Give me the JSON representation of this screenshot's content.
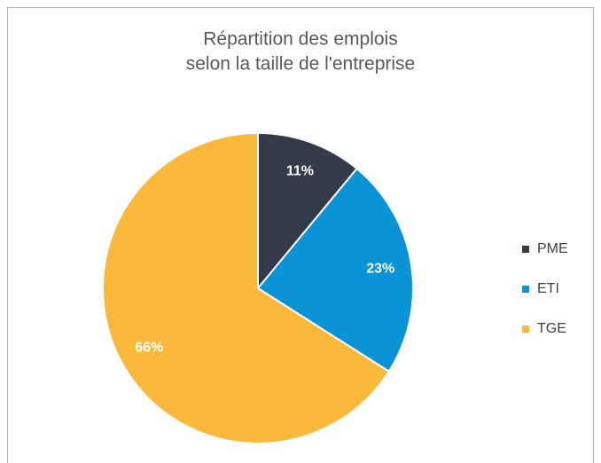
{
  "chart_data": {
    "type": "pie",
    "title": [
      "Répartition des emplois",
      "selon la taille de l'entreprise"
    ],
    "categories": [
      "PME",
      "ETI",
      "TGE"
    ],
    "values": [
      11,
      23,
      66
    ],
    "value_labels": [
      "11%",
      "23%",
      "66%"
    ],
    "colors": [
      "#333a4a",
      "#0a94d8",
      "#fbb93c"
    ],
    "legend": "right"
  }
}
